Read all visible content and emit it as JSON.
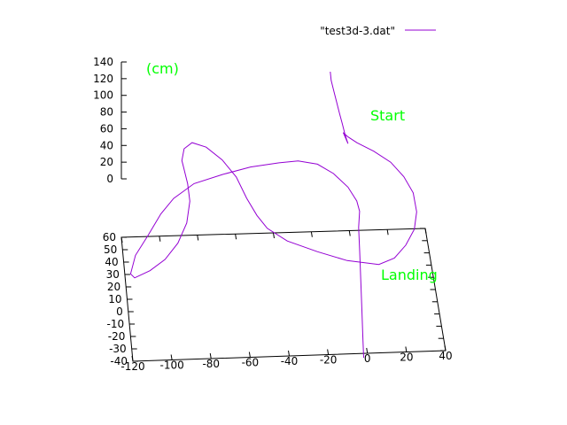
{
  "chart_data": {
    "type": "line",
    "title": "",
    "legend": {
      "position": "top-right",
      "entries": [
        {
          "label": "\"test3d-3.dat\"",
          "color": "#9400d3"
        }
      ]
    },
    "series": [
      {
        "name": "\"test3d-3.dat\"",
        "color": "#9400d3",
        "points": [
          [
            -10,
            60,
            121
          ],
          [
            -10,
            55,
            118
          ],
          [
            -9,
            50,
            112
          ],
          [
            -8,
            45,
            106
          ],
          [
            -7,
            40,
            100
          ],
          [
            -6,
            35,
            95
          ],
          [
            -5,
            30,
            89
          ],
          [
            -4,
            25,
            86
          ],
          [
            -6,
            30,
            92
          ],
          [
            -4,
            25,
            94
          ],
          [
            0,
            18,
            97
          ],
          [
            8,
            10,
            98
          ],
          [
            16,
            2,
            96
          ],
          [
            22,
            -6,
            90
          ],
          [
            26,
            -14,
            82
          ],
          [
            27,
            -22,
            71
          ],
          [
            25,
            -30,
            62
          ],
          [
            20,
            -36,
            52
          ],
          [
            14,
            -38,
            40
          ],
          [
            6,
            -38,
            33
          ],
          [
            -10,
            -36,
            36
          ],
          [
            -25,
            -32,
            42
          ],
          [
            -40,
            -28,
            50
          ],
          [
            -50,
            -24,
            60
          ],
          [
            -55,
            -20,
            70
          ],
          [
            -60,
            -16,
            85
          ],
          [
            -65,
            -12,
            105
          ],
          [
            -72,
            -8,
            120
          ],
          [
            -80,
            -4,
            130
          ],
          [
            -87,
            0,
            130
          ],
          [
            -91,
            2,
            120
          ],
          [
            -92,
            4,
            103
          ],
          [
            -91,
            5,
            93
          ],
          [
            -89,
            4,
            75
          ],
          [
            -88,
            2,
            57
          ],
          [
            -90,
            -4,
            40
          ],
          [
            -95,
            -10,
            25
          ],
          [
            -102,
            -16,
            15
          ],
          [
            -110,
            -20,
            8
          ],
          [
            -118,
            -22,
            3
          ],
          [
            -120,
            -20,
            5
          ],
          [
            -117,
            -12,
            15
          ],
          [
            -110,
            -6,
            30
          ],
          [
            -103,
            2,
            43
          ],
          [
            -96,
            8,
            52
          ],
          [
            -85,
            14,
            60
          ],
          [
            -70,
            18,
            64
          ],
          [
            -55,
            22,
            66
          ],
          [
            -40,
            24,
            67
          ],
          [
            -30,
            25,
            67
          ],
          [
            -20,
            24,
            64
          ],
          [
            -12,
            20,
            58
          ],
          [
            -5,
            14,
            50
          ],
          [
            -1,
            8,
            42
          ],
          [
            0,
            3,
            37
          ],
          [
            -1,
            -2,
            25
          ],
          [
            -1,
            -8,
            5
          ],
          [
            -1,
            -14,
            -20
          ],
          [
            -1,
            -20,
            -48
          ],
          [
            -1,
            -26,
            -75
          ],
          [
            -1,
            -30,
            -90
          ]
        ]
      }
    ],
    "axes": {
      "x": {
        "range": [
          -120,
          40
        ],
        "ticks": [
          "-120",
          "-100",
          "-80",
          "-60",
          "-40",
          "-20",
          "0",
          "20",
          "40"
        ]
      },
      "y": {
        "range": [
          -40,
          60
        ],
        "ticks": [
          "-40",
          "-30",
          "-20",
          "-10",
          "0",
          "10",
          "20",
          "30",
          "40",
          "50",
          "60"
        ]
      },
      "z": {
        "range": [
          0,
          140
        ],
        "ticks": [
          "0",
          "20",
          "40",
          "60",
          "80",
          "100",
          "120",
          "140"
        ]
      }
    },
    "annotations": [
      {
        "text": "(cm)",
        "color": "#00ff00"
      },
      {
        "text": "Start",
        "color": "#00ff00"
      },
      {
        "text": "Landing",
        "color": "#00ff00"
      }
    ],
    "grid": false
  }
}
